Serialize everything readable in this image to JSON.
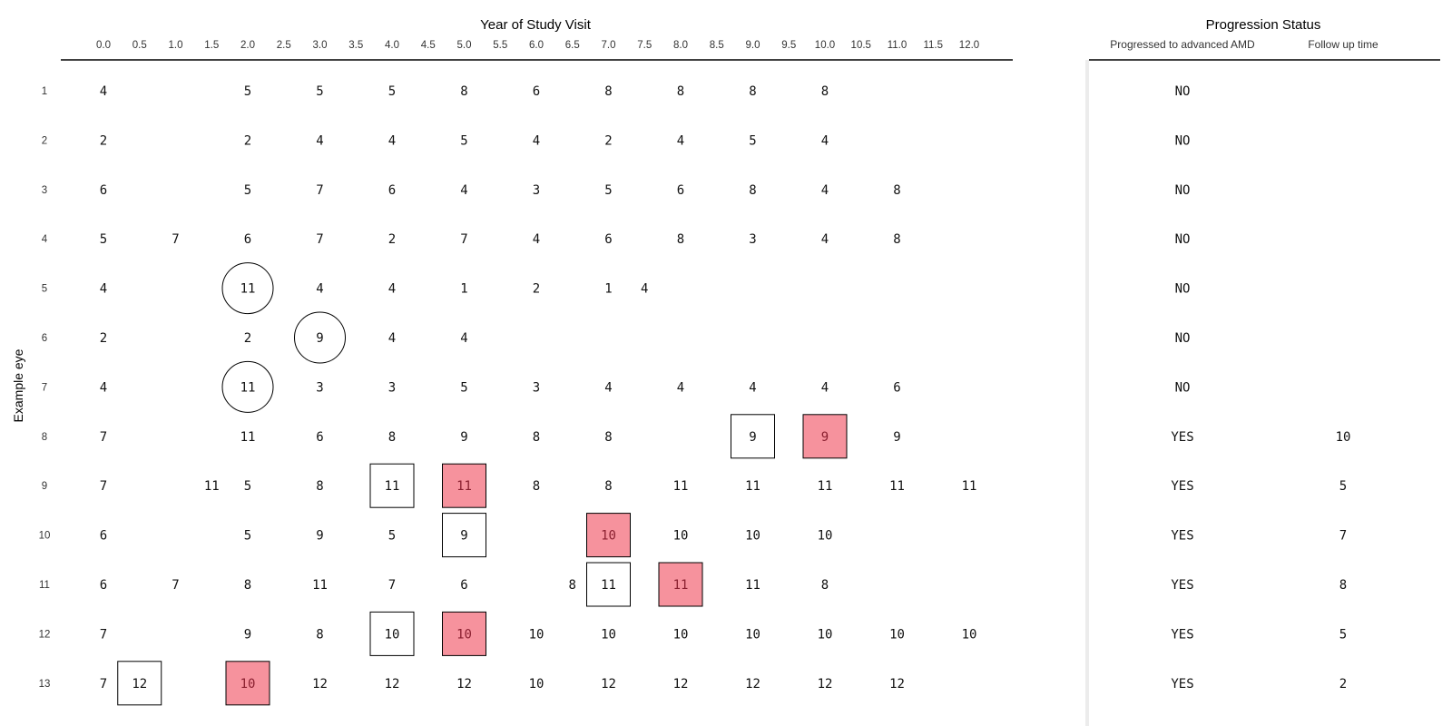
{
  "chart_data": {
    "type": "table",
    "title": "Year of Study Visit",
    "ylabel": "Example eye",
    "x_ticks": [
      "0.0",
      "0.5",
      "1.0",
      "1.5",
      "2.0",
      "2.5",
      "3.0",
      "3.5",
      "4.0",
      "4.5",
      "5.0",
      "5.5",
      "6.0",
      "6.5",
      "7.0",
      "7.5",
      "8.0",
      "8.5",
      "9.0",
      "9.5",
      "10.0",
      "10.5",
      "11.0",
      "11.5",
      "12.0"
    ],
    "side_panel": {
      "title": "Progression Status",
      "columns": [
        "Progressed to advanced AMD",
        "Follow up time"
      ]
    },
    "marker_colors": {
      "progression": "#f6929d",
      "outline": "#000000"
    },
    "rows": [
      {
        "label": "1",
        "progressed": "NO",
        "follow_up": "",
        "visits": [
          [
            0,
            "4"
          ],
          [
            2,
            "5"
          ],
          [
            3,
            "5"
          ],
          [
            4,
            "5"
          ],
          [
            5,
            "8"
          ],
          [
            6,
            "6"
          ],
          [
            7,
            "8"
          ],
          [
            8,
            "8"
          ],
          [
            9,
            "8"
          ],
          [
            10,
            "8"
          ]
        ],
        "marks": []
      },
      {
        "label": "2",
        "progressed": "NO",
        "follow_up": "",
        "visits": [
          [
            0,
            "2"
          ],
          [
            2,
            "2"
          ],
          [
            3,
            "4"
          ],
          [
            4,
            "4"
          ],
          [
            5,
            "5"
          ],
          [
            6,
            "4"
          ],
          [
            7,
            "2"
          ],
          [
            8,
            "4"
          ],
          [
            9,
            "5"
          ],
          [
            10,
            "4"
          ]
        ],
        "marks": []
      },
      {
        "label": "3",
        "progressed": "NO",
        "follow_up": "",
        "visits": [
          [
            0,
            "6"
          ],
          [
            2,
            "5"
          ],
          [
            3,
            "7"
          ],
          [
            4,
            "6"
          ],
          [
            5,
            "4"
          ],
          [
            6,
            "3"
          ],
          [
            7,
            "5"
          ],
          [
            8,
            "6"
          ],
          [
            9,
            "8"
          ],
          [
            10,
            "4"
          ],
          [
            11,
            "8"
          ]
        ],
        "marks": []
      },
      {
        "label": "4",
        "progressed": "NO",
        "follow_up": "",
        "visits": [
          [
            0,
            "5"
          ],
          [
            1,
            "7"
          ],
          [
            2,
            "6"
          ],
          [
            3,
            "7"
          ],
          [
            4,
            "2"
          ],
          [
            5,
            "7"
          ],
          [
            6,
            "4"
          ],
          [
            7,
            "6"
          ],
          [
            8,
            "8"
          ],
          [
            9,
            "3"
          ],
          [
            10,
            "4"
          ],
          [
            11,
            "8"
          ]
        ],
        "marks": []
      },
      {
        "label": "5",
        "progressed": "NO",
        "follow_up": "",
        "visits": [
          [
            0,
            "4"
          ],
          [
            2,
            "11"
          ],
          [
            3,
            "4"
          ],
          [
            4,
            "4"
          ],
          [
            5,
            "1"
          ],
          [
            6,
            "2"
          ],
          [
            7,
            "1"
          ],
          [
            7.5,
            "4"
          ]
        ],
        "marks": [
          [
            2,
            "circle"
          ]
        ]
      },
      {
        "label": "6",
        "progressed": "NO",
        "follow_up": "",
        "visits": [
          [
            0,
            "2"
          ],
          [
            2,
            "2"
          ],
          [
            3,
            "9"
          ],
          [
            4,
            "4"
          ],
          [
            5,
            "4"
          ]
        ],
        "marks": [
          [
            3,
            "circle"
          ]
        ]
      },
      {
        "label": "7",
        "progressed": "NO",
        "follow_up": "",
        "visits": [
          [
            0,
            "4"
          ],
          [
            2,
            "11"
          ],
          [
            3,
            "3"
          ],
          [
            4,
            "3"
          ],
          [
            5,
            "5"
          ],
          [
            6,
            "3"
          ],
          [
            7,
            "4"
          ],
          [
            8,
            "4"
          ],
          [
            9,
            "4"
          ],
          [
            10,
            "4"
          ],
          [
            11,
            "6"
          ]
        ],
        "marks": [
          [
            2,
            "circle"
          ]
        ]
      },
      {
        "label": "8",
        "progressed": "YES",
        "follow_up": "10",
        "visits": [
          [
            0,
            "7"
          ],
          [
            2,
            "11"
          ],
          [
            3,
            "6"
          ],
          [
            4,
            "8"
          ],
          [
            5,
            "9"
          ],
          [
            6,
            "8"
          ],
          [
            7,
            "8"
          ],
          [
            9,
            "9"
          ],
          [
            10,
            "9"
          ],
          [
            11,
            "9"
          ]
        ],
        "marks": [
          [
            9,
            "box"
          ],
          [
            10,
            "filled"
          ]
        ]
      },
      {
        "label": "9",
        "progressed": "YES",
        "follow_up": "5",
        "visits": [
          [
            0,
            "7"
          ],
          [
            1.5,
            "11"
          ],
          [
            2,
            "5"
          ],
          [
            3,
            "8"
          ],
          [
            4,
            "11"
          ],
          [
            5,
            "11"
          ],
          [
            6,
            "8"
          ],
          [
            7,
            "8"
          ],
          [
            8,
            "11"
          ],
          [
            9,
            "11"
          ],
          [
            10,
            "11"
          ],
          [
            11,
            "11"
          ],
          [
            12,
            "11"
          ]
        ],
        "marks": [
          [
            4,
            "box"
          ],
          [
            5,
            "filled"
          ]
        ]
      },
      {
        "label": "10",
        "progressed": "YES",
        "follow_up": "7",
        "visits": [
          [
            0,
            "6"
          ],
          [
            2,
            "5"
          ],
          [
            3,
            "9"
          ],
          [
            4,
            "5"
          ],
          [
            5,
            "9"
          ],
          [
            7,
            "10"
          ],
          [
            8,
            "10"
          ],
          [
            9,
            "10"
          ],
          [
            10,
            "10"
          ]
        ],
        "marks": [
          [
            5,
            "box"
          ],
          [
            7,
            "filled"
          ]
        ]
      },
      {
        "label": "11",
        "progressed": "YES",
        "follow_up": "8",
        "visits": [
          [
            0,
            "6"
          ],
          [
            1,
            "7"
          ],
          [
            2,
            "8"
          ],
          [
            3,
            "11"
          ],
          [
            4,
            "7"
          ],
          [
            5,
            "6"
          ],
          [
            6.5,
            "8"
          ],
          [
            7,
            "11"
          ],
          [
            8,
            "11"
          ],
          [
            9,
            "11"
          ],
          [
            10,
            "8"
          ]
        ],
        "marks": [
          [
            7,
            "box"
          ],
          [
            8,
            "filled"
          ]
        ]
      },
      {
        "label": "12",
        "progressed": "YES",
        "follow_up": "5",
        "visits": [
          [
            0,
            "7"
          ],
          [
            2,
            "9"
          ],
          [
            3,
            "8"
          ],
          [
            4,
            "10"
          ],
          [
            5,
            "10"
          ],
          [
            6,
            "10"
          ],
          [
            7,
            "10"
          ],
          [
            8,
            "10"
          ],
          [
            9,
            "10"
          ],
          [
            10,
            "10"
          ],
          [
            11,
            "10"
          ],
          [
            12,
            "10"
          ]
        ],
        "marks": [
          [
            4,
            "box"
          ],
          [
            5,
            "filled"
          ]
        ]
      },
      {
        "label": "13",
        "progressed": "YES",
        "follow_up": "2",
        "visits": [
          [
            0,
            "7"
          ],
          [
            0.5,
            "12"
          ],
          [
            2,
            "10"
          ],
          [
            3,
            "12"
          ],
          [
            4,
            "12"
          ],
          [
            5,
            "12"
          ],
          [
            6,
            "10"
          ],
          [
            7,
            "12"
          ],
          [
            8,
            "12"
          ],
          [
            9,
            "12"
          ],
          [
            10,
            "12"
          ],
          [
            11,
            "12"
          ]
        ],
        "marks": [
          [
            0.5,
            "box"
          ],
          [
            2,
            "filled"
          ]
        ]
      }
    ]
  }
}
